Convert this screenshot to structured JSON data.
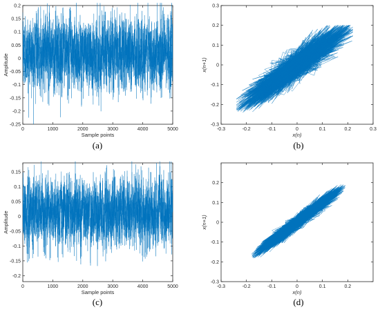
{
  "captions": [
    "(a)",
    "(b)",
    "(c)",
    "(d)"
  ],
  "chart_data": [
    {
      "panel": "a",
      "type": "line",
      "title": "",
      "xlabel": "Sample points",
      "ylabel": "Amplitude",
      "xlim": [
        0,
        5000
      ],
      "ylim": [
        -0.25,
        0.2
      ],
      "xticks": [
        0,
        1000,
        2000,
        3000,
        4000,
        5000
      ],
      "yticks": [
        -0.25,
        -0.2,
        -0.15,
        -0.1,
        -0.05,
        0,
        0.05,
        0.1,
        0.15,
        0.2
      ],
      "grid": false,
      "color": "#0072BD",
      "n_points": 5000,
      "signal_mean": 0.02,
      "signal_std": 0.065,
      "observed_max": 0.21,
      "observed_min": -0.25
    },
    {
      "panel": "b",
      "type": "line",
      "title": "",
      "xlabel": "x(n)",
      "ylabel": "x(n+1)",
      "xlim": [
        -0.3,
        0.3
      ],
      "ylim": [
        -0.3,
        0.3
      ],
      "xticks": [
        -0.3,
        -0.2,
        -0.1,
        0,
        0.1,
        0.2,
        0.3
      ],
      "yticks": [
        -0.3,
        -0.2,
        -0.1,
        0,
        0.1,
        0.2,
        0.3
      ],
      "grid": false,
      "color": "#0072BD",
      "x_range_observed": [
        -0.24,
        0.22
      ],
      "y_range_observed": [
        -0.24,
        0.2
      ]
    },
    {
      "panel": "c",
      "type": "line",
      "title": "",
      "xlabel": "Sample points",
      "ylabel": "Amplitude",
      "xlim": [
        0,
        5000
      ],
      "ylim": [
        -0.22,
        0.18
      ],
      "xticks": [
        0,
        1000,
        2000,
        3000,
        4000,
        5000
      ],
      "yticks": [
        -0.2,
        -0.15,
        -0.1,
        -0.05,
        0,
        0.05,
        0.1,
        0.15
      ],
      "grid": false,
      "color": "#0072BD",
      "n_points": 5000,
      "signal_mean": 0.015,
      "signal_std": 0.055,
      "observed_max": 0.185,
      "observed_min": -0.22
    },
    {
      "panel": "d",
      "type": "line",
      "title": "",
      "xlabel": "x(n)",
      "ylabel": "x(n+1)",
      "xlim": [
        -0.3,
        0.3
      ],
      "ylim": [
        -0.3,
        0.3
      ],
      "xticks": [
        -0.3,
        -0.2,
        -0.1,
        0,
        0.1,
        0.2
      ],
      "yticks": [
        -0.3,
        -0.2,
        -0.1,
        0,
        0.1,
        0.2
      ],
      "grid": false,
      "color": "#0072BD",
      "x_range_observed": [
        -0.18,
        0.19
      ],
      "y_range_observed": [
        -0.18,
        0.19
      ]
    }
  ]
}
